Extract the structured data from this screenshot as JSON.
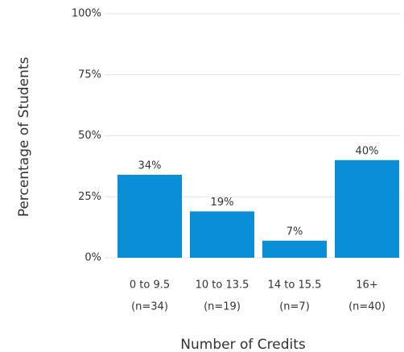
{
  "chart_data": {
    "type": "bar",
    "xlabel": "Number of Credits",
    "ylabel": "Percentage of Students",
    "categories": [
      [
        "0 to 9.5",
        "(n=34)"
      ],
      [
        "10 to 13.5",
        "(n=19)"
      ],
      [
        "14 to 15.5",
        "(n=7)"
      ],
      [
        "16+",
        "(n=40)"
      ]
    ],
    "values": [
      34,
      19,
      7,
      40
    ],
    "value_labels": [
      "34%",
      "19%",
      "7%",
      "40%"
    ],
    "color": "#0a8ed6",
    "ylim": [
      0,
      100
    ],
    "yticks": [
      {
        "value": 0,
        "label": "0%"
      },
      {
        "value": 25,
        "label": "25%"
      },
      {
        "value": 50,
        "label": "50%"
      },
      {
        "value": 75,
        "label": "75%"
      },
      {
        "value": 100,
        "label": "100%"
      }
    ],
    "grid": true
  }
}
